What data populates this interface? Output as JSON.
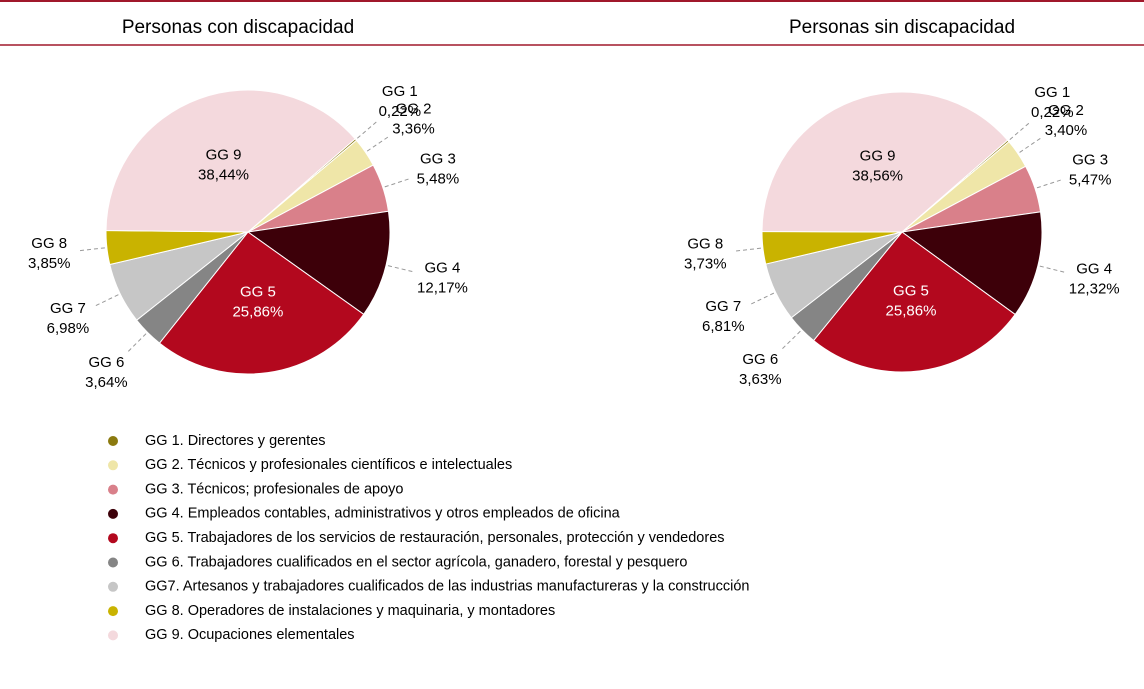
{
  "chart_data": [
    {
      "type": "pie",
      "title": "Personas con discapacidad",
      "categories": [
        "GG 1",
        "GG 2",
        "GG 3",
        "GG 4",
        "GG 5",
        "GG 6",
        "GG 7",
        "GG 8",
        "GG 9"
      ],
      "values": [
        0.22,
        3.36,
        5.48,
        12.17,
        25.86,
        3.64,
        6.98,
        3.85,
        38.44
      ],
      "value_labels": [
        "0,22%",
        "3,36%",
        "5,48%",
        "12,17%",
        "25,86%",
        "3,64%",
        "6,98%",
        "3,85%",
        "38,44%"
      ],
      "colors": [
        "#8b7a0f",
        "#efe6a8",
        "#d9808a",
        "#3d0009",
        "#b3081e",
        "#858585",
        "#c6c6c6",
        "#c9b300",
        "#f4d9dd"
      ]
    },
    {
      "type": "pie",
      "title": "Personas sin discapacidad",
      "categories": [
        "GG 1",
        "GG 2",
        "GG 3",
        "GG 4",
        "GG 5",
        "GG 6",
        "GG 7",
        "GG 8",
        "GG 9"
      ],
      "values": [
        0.22,
        3.4,
        5.47,
        12.32,
        25.86,
        3.63,
        6.81,
        3.73,
        38.56
      ],
      "value_labels": [
        "0,22%",
        "3,40%",
        "5,47%",
        "12,32%",
        "25,86%",
        "3,63%",
        "6,81%",
        "3,73%",
        "38,56%"
      ],
      "colors": [
        "#8b7a0f",
        "#efe6a8",
        "#d9808a",
        "#3d0009",
        "#b3081e",
        "#858585",
        "#c6c6c6",
        "#c9b300",
        "#f4d9dd"
      ]
    }
  ],
  "legend": [
    {
      "label": "GG 1. Directores y gerentes",
      "color": "#8b7a0f"
    },
    {
      "label": "GG 2. Técnicos y profesionales científicos e intelectuales",
      "color": "#efe6a8"
    },
    {
      "label": "GG 3. Técnicos; profesionales de apoyo",
      "color": "#d9808a"
    },
    {
      "label": "GG 4. Empleados contables, administrativos y otros empleados de oficina",
      "color": "#3d0009"
    },
    {
      "label": "GG 5. Trabajadores de los servicios de restauración, personales, protección y vendedores",
      "color": "#b3081e"
    },
    {
      "label": "GG 6. Trabajadores cualificados en el sector agrícola, ganadero, forestal y pesquero",
      "color": "#858585"
    },
    {
      "label": "GG7.  Artesanos y trabajadores cualificados de las industrias manufactureras y la construcción",
      "color": "#c6c6c6"
    },
    {
      "label": "GG 8. Operadores de instalaciones y maquinaria, y montadores",
      "color": "#c9b300"
    },
    {
      "label": "GG 9. Ocupaciones elementales",
      "color": "#f4d9dd"
    }
  ]
}
